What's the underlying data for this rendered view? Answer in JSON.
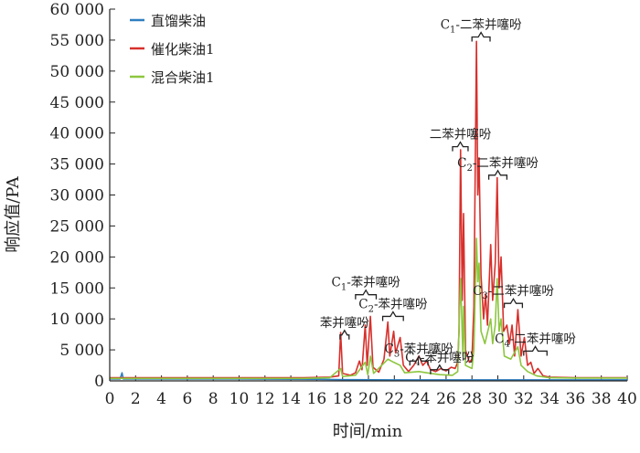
{
  "chart_data": {
    "type": "line",
    "xlabel": "时间/min",
    "ylabel": "响应值/PA",
    "xlim": [
      0,
      40
    ],
    "ylim": [
      0,
      60000
    ],
    "x_ticks": [
      0,
      2,
      4,
      6,
      8,
      10,
      12,
      14,
      16,
      18,
      20,
      22,
      24,
      26,
      28,
      30,
      32,
      34,
      36,
      38,
      40
    ],
    "y_ticks": [
      0,
      5000,
      10000,
      15000,
      20000,
      25000,
      30000,
      35000,
      40000,
      45000,
      50000,
      55000,
      60000
    ],
    "y_tick_labels": [
      "0",
      "5 000",
      "10 000",
      "15 000",
      "20 000",
      "25 000",
      "30 000",
      "35 000",
      "40 000",
      "45 000",
      "50 000",
      "55 000",
      "60 000"
    ],
    "legend_position": "top-left",
    "series": [
      {
        "name": "直馏柴油",
        "color": "#2e7fc0",
        "points": [
          [
            0,
            300
          ],
          [
            0.8,
            300
          ],
          [
            0.95,
            1300
          ],
          [
            1.05,
            300
          ],
          [
            4,
            300
          ],
          [
            10,
            300
          ],
          [
            16,
            250
          ],
          [
            18,
            200
          ],
          [
            22,
            150
          ],
          [
            26,
            150
          ],
          [
            30,
            150
          ],
          [
            34,
            150
          ],
          [
            40,
            150
          ]
        ]
      },
      {
        "name": "催化柴油1",
        "color": "#d7302c",
        "points": [
          [
            0,
            500
          ],
          [
            4,
            500
          ],
          [
            10,
            500
          ],
          [
            15,
            500
          ],
          [
            17,
            600
          ],
          [
            17.7,
            800
          ],
          [
            17.85,
            7800
          ],
          [
            18.0,
            1200
          ],
          [
            18.6,
            900
          ],
          [
            19.0,
            1300
          ],
          [
            19.3,
            3200
          ],
          [
            19.5,
            1800
          ],
          [
            19.75,
            9000
          ],
          [
            19.9,
            2500
          ],
          [
            20.15,
            10400
          ],
          [
            20.35,
            2200
          ],
          [
            20.8,
            1400
          ],
          [
            21.2,
            3500
          ],
          [
            21.5,
            9500
          ],
          [
            21.65,
            4000
          ],
          [
            21.95,
            8000
          ],
          [
            22.1,
            4500
          ],
          [
            22.45,
            7000
          ],
          [
            22.7,
            2500
          ],
          [
            23.1,
            1500
          ],
          [
            23.5,
            2500
          ],
          [
            23.9,
            4000
          ],
          [
            24.2,
            2500
          ],
          [
            24.5,
            3200
          ],
          [
            24.8,
            1800
          ],
          [
            25.2,
            1500
          ],
          [
            25.6,
            2000
          ],
          [
            26.0,
            1600
          ],
          [
            26.4,
            2200
          ],
          [
            26.7,
            2000
          ],
          [
            26.9,
            3000
          ],
          [
            27.0,
            8000
          ],
          [
            27.12,
            37300
          ],
          [
            27.25,
            13000
          ],
          [
            27.35,
            27000
          ],
          [
            27.5,
            5000
          ],
          [
            27.8,
            3000
          ],
          [
            28.0,
            3500
          ],
          [
            28.15,
            12000
          ],
          [
            28.35,
            54800
          ],
          [
            28.45,
            30000
          ],
          [
            28.55,
            36000
          ],
          [
            28.7,
            17000
          ],
          [
            28.9,
            10000
          ],
          [
            29.05,
            14000
          ],
          [
            29.2,
            9000
          ],
          [
            29.45,
            22000
          ],
          [
            29.6,
            13000
          ],
          [
            29.8,
            19000
          ],
          [
            29.95,
            32800
          ],
          [
            30.1,
            15000
          ],
          [
            30.25,
            20000
          ],
          [
            30.45,
            8000
          ],
          [
            30.7,
            9000
          ],
          [
            30.9,
            6000
          ],
          [
            31.1,
            9000
          ],
          [
            31.3,
            4000
          ],
          [
            31.55,
            11500
          ],
          [
            31.8,
            4000
          ],
          [
            32.05,
            7000
          ],
          [
            32.3,
            2500
          ],
          [
            32.55,
            3000
          ],
          [
            32.8,
            1200
          ],
          [
            33.1,
            2000
          ],
          [
            33.5,
            800
          ],
          [
            34,
            600
          ],
          [
            36,
            500
          ],
          [
            40,
            500
          ]
        ]
      },
      {
        "name": "混合柴油1",
        "color": "#8dc63f",
        "points": [
          [
            0,
            400
          ],
          [
            4,
            400
          ],
          [
            10,
            400
          ],
          [
            15,
            400
          ],
          [
            17,
            500
          ],
          [
            17.85,
            2000
          ],
          [
            18.0,
            700
          ],
          [
            19.0,
            900
          ],
          [
            19.75,
            3000
          ],
          [
            19.95,
            1000
          ],
          [
            20.15,
            4000
          ],
          [
            20.4,
            1200
          ],
          [
            21.5,
            3500
          ],
          [
            21.95,
            3000
          ],
          [
            22.45,
            2500
          ],
          [
            22.8,
            1300
          ],
          [
            23.9,
            1500
          ],
          [
            24.5,
            1300
          ],
          [
            25.5,
            1000
          ],
          [
            26.5,
            900
          ],
          [
            26.9,
            1500
          ],
          [
            27.12,
            16500
          ],
          [
            27.3,
            4000
          ],
          [
            27.35,
            12000
          ],
          [
            27.5,
            2500
          ],
          [
            28.0,
            2000
          ],
          [
            28.15,
            5000
          ],
          [
            28.35,
            23000
          ],
          [
            28.45,
            16000
          ],
          [
            28.55,
            19000
          ],
          [
            28.7,
            8000
          ],
          [
            29.0,
            6000
          ],
          [
            29.45,
            10000
          ],
          [
            29.6,
            6000
          ],
          [
            29.8,
            9000
          ],
          [
            29.95,
            16500
          ],
          [
            30.1,
            8000
          ],
          [
            30.25,
            10000
          ],
          [
            30.5,
            4000
          ],
          [
            31.0,
            3500
          ],
          [
            31.55,
            5500
          ],
          [
            31.8,
            2500
          ],
          [
            32.3,
            1500
          ],
          [
            33.0,
            800
          ],
          [
            34,
            500
          ],
          [
            36,
            450
          ],
          [
            40,
            450
          ]
        ]
      }
    ],
    "annotations": [
      {
        "label": "苯并噻吩",
        "x_start": 17.8,
        "x_end": 18.5,
        "y_bracket": 7400,
        "sub": ""
      },
      {
        "label": "C1-苯并噻吩",
        "x_start": 19.0,
        "x_end": 20.6,
        "y_bracket": 13900,
        "sub": "1"
      },
      {
        "label": "C2-苯并噻吩",
        "x_start": 21.1,
        "x_end": 22.7,
        "y_bracket": 10400,
        "sub": "2"
      },
      {
        "label": "C3-苯并噻吩",
        "x_start": 23.2,
        "x_end": 24.6,
        "y_bracket": 3200,
        "sub": "3"
      },
      {
        "label": "C4-苯并噻吩",
        "x_start": 24.8,
        "x_end": 26.2,
        "y_bracket": 1800,
        "sub": "4"
      },
      {
        "label": "二苯并噻吩",
        "x_start": 26.5,
        "x_end": 27.7,
        "y_bracket": 37800,
        "sub": ""
      },
      {
        "label": "C1-二苯并噻吩",
        "x_start": 28.0,
        "x_end": 29.4,
        "y_bracket": 55500,
        "sub": "1"
      },
      {
        "label": "C2-二苯并噻吩",
        "x_start": 29.3,
        "x_end": 30.7,
        "y_bracket": 33200,
        "sub": "2"
      },
      {
        "label": "C3-二苯并噻吩",
        "x_start": 30.5,
        "x_end": 31.9,
        "y_bracket": 12500,
        "sub": "3"
      },
      {
        "label": "C4-二苯并噻吩",
        "x_start": 32.0,
        "x_end": 33.8,
        "y_bracket": 4800,
        "sub": "4"
      }
    ]
  }
}
